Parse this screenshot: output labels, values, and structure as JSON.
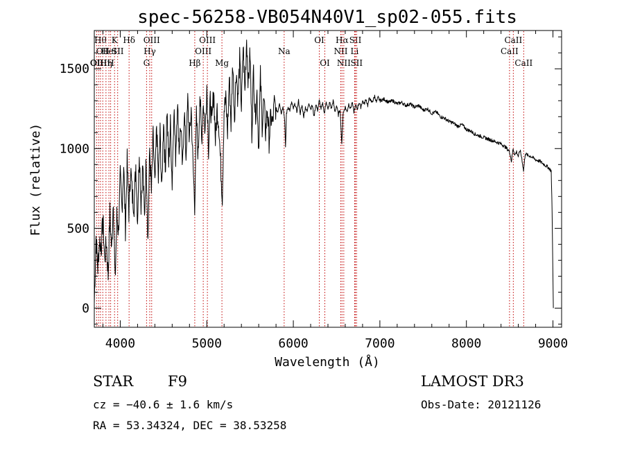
{
  "chart_data": {
    "type": "line",
    "title": "spec-56258-VB054N40V1_sp02-055.fits",
    "xlabel": "Wavelength (Å)",
    "ylabel": "Flux (relative)",
    "xlim": [
      3700,
      9100
    ],
    "ylim": [
      -120,
      1740
    ],
    "x_ticks": [
      4000,
      5000,
      6000,
      7000,
      8000,
      9000
    ],
    "x_tick_labels": [
      "4000",
      "5000",
      "6000",
      "7000",
      "8000",
      "9000"
    ],
    "y_ticks": [
      0,
      500,
      1000,
      1500
    ],
    "y_tick_labels": [
      "0",
      "500",
      "1000",
      "1500"
    ],
    "line_color": "#000000",
    "marker_color": "#c00000",
    "series": [
      {
        "name": "flux",
        "points": [
          [
            3700,
            30
          ],
          [
            3720,
            450
          ],
          [
            3740,
            250
          ],
          [
            3760,
            430
          ],
          [
            3780,
            380
          ],
          [
            3800,
            560
          ],
          [
            3820,
            300
          ],
          [
            3840,
            420
          ],
          [
            3860,
            200
          ],
          [
            3880,
            600
          ],
          [
            3900,
            350
          ],
          [
            3920,
            700
          ],
          [
            3940,
            150
          ],
          [
            3960,
            580
          ],
          [
            3980,
            480
          ],
          [
            4000,
            820
          ],
          [
            4020,
            620
          ],
          [
            4040,
            900
          ],
          [
            4060,
            500
          ],
          [
            4080,
            920
          ],
          [
            4100,
            600
          ],
          [
            4120,
            880
          ],
          [
            4140,
            700
          ],
          [
            4160,
            650
          ],
          [
            4180,
            900
          ],
          [
            4200,
            550
          ],
          [
            4220,
            1000
          ],
          [
            4240,
            650
          ],
          [
            4260,
            900
          ],
          [
            4280,
            560
          ],
          [
            4300,
            950
          ],
          [
            4320,
            420
          ],
          [
            4340,
            1000
          ],
          [
            4360,
            720
          ],
          [
            4380,
            1080
          ],
          [
            4400,
            750
          ],
          [
            4420,
            1150
          ],
          [
            4440,
            800
          ],
          [
            4460,
            1100
          ],
          [
            4480,
            720
          ],
          [
            4500,
            1200
          ],
          [
            4520,
            850
          ],
          [
            4540,
            1250
          ],
          [
            4560,
            900
          ],
          [
            4580,
            1150
          ],
          [
            4600,
            780
          ],
          [
            4620,
            1270
          ],
          [
            4640,
            950
          ],
          [
            4660,
            1300
          ],
          [
            4680,
            1000
          ],
          [
            4700,
            1150
          ],
          [
            4720,
            860
          ],
          [
            4740,
            1250
          ],
          [
            4760,
            950
          ],
          [
            4780,
            1300
          ],
          [
            4800,
            1050
          ],
          [
            4820,
            1250
          ],
          [
            4840,
            900
          ],
          [
            4860,
            650
          ],
          [
            4880,
            1200
          ],
          [
            4900,
            950
          ],
          [
            4920,
            1350
          ],
          [
            4940,
            1050
          ],
          [
            4960,
            1300
          ],
          [
            4980,
            1100
          ],
          [
            5000,
            1400
          ],
          [
            5020,
            1000
          ],
          [
            5040,
            1300
          ],
          [
            5060,
            1150
          ],
          [
            5080,
            1380
          ],
          [
            5100,
            1050
          ],
          [
            5120,
            1250
          ],
          [
            5140,
            1150
          ],
          [
            5160,
            900
          ],
          [
            5180,
            700
          ],
          [
            5200,
            1250
          ],
          [
            5220,
            1300
          ],
          [
            5240,
            1100
          ],
          [
            5260,
            1450
          ],
          [
            5280,
            1150
          ],
          [
            5300,
            1550
          ],
          [
            5320,
            1200
          ],
          [
            5340,
            1500
          ],
          [
            5360,
            1300
          ],
          [
            5380,
            1560
          ],
          [
            5400,
            1250
          ],
          [
            5420,
            1650
          ],
          [
            5440,
            1350
          ],
          [
            5460,
            1700
          ],
          [
            5480,
            1400
          ],
          [
            5500,
            1600
          ],
          [
            5520,
            1100
          ],
          [
            5540,
            1500
          ],
          [
            5560,
            1200
          ],
          [
            5580,
            1350
          ],
          [
            5600,
            1000
          ],
          [
            5620,
            1450
          ],
          [
            5640,
            1150
          ],
          [
            5660,
            1300
          ],
          [
            5680,
            1100
          ],
          [
            5700,
            1250
          ],
          [
            5720,
            1050
          ],
          [
            5740,
            1200
          ],
          [
            5760,
            1150
          ],
          [
            5780,
            1280
          ],
          [
            5800,
            1250
          ],
          [
            5820,
            1230
          ],
          [
            5840,
            1290
          ],
          [
            5860,
            1220
          ],
          [
            5880,
            1270
          ],
          [
            5900,
            1180
          ],
          [
            5910,
            1000
          ],
          [
            5920,
            1220
          ],
          [
            5940,
            1260
          ],
          [
            5960,
            1240
          ],
          [
            5980,
            1290
          ],
          [
            6000,
            1250
          ],
          [
            6020,
            1280
          ],
          [
            6040,
            1230
          ],
          [
            6060,
            1300
          ],
          [
            6080,
            1220
          ],
          [
            6100,
            1270
          ],
          [
            6120,
            1200
          ],
          [
            6140,
            1260
          ],
          [
            6160,
            1230
          ],
          [
            6180,
            1290
          ],
          [
            6200,
            1250
          ],
          [
            6220,
            1270
          ],
          [
            6240,
            1200
          ],
          [
            6260,
            1280
          ],
          [
            6280,
            1240
          ],
          [
            6300,
            1300
          ],
          [
            6320,
            1250
          ],
          [
            6340,
            1280
          ],
          [
            6360,
            1220
          ],
          [
            6380,
            1300
          ],
          [
            6400,
            1240
          ],
          [
            6420,
            1290
          ],
          [
            6440,
            1250
          ],
          [
            6460,
            1300
          ],
          [
            6480,
            1230
          ],
          [
            6500,
            1270
          ],
          [
            6520,
            1210
          ],
          [
            6540,
            1250
          ],
          [
            6560,
            1020
          ],
          [
            6575,
            1220
          ],
          [
            6600,
            1260
          ],
          [
            6620,
            1230
          ],
          [
            6640,
            1280
          ],
          [
            6660,
            1250
          ],
          [
            6680,
            1290
          ],
          [
            6700,
            1230
          ],
          [
            6720,
            1270
          ],
          [
            6740,
            1250
          ],
          [
            6760,
            1290
          ],
          [
            6780,
            1260
          ],
          [
            6800,
            1300
          ],
          [
            6820,
            1280
          ],
          [
            6840,
            1310
          ],
          [
            6860,
            1270
          ],
          [
            6880,
            1320
          ],
          [
            6900,
            1290
          ],
          [
            6920,
            1300
          ],
          [
            6940,
            1330
          ],
          [
            6960,
            1290
          ],
          [
            6980,
            1320
          ],
          [
            7000,
            1300
          ],
          [
            7050,
            1310
          ],
          [
            7100,
            1290
          ],
          [
            7150,
            1300
          ],
          [
            7200,
            1280
          ],
          [
            7250,
            1290
          ],
          [
            7300,
            1270
          ],
          [
            7350,
            1280
          ],
          [
            7400,
            1260
          ],
          [
            7450,
            1270
          ],
          [
            7500,
            1240
          ],
          [
            7550,
            1250
          ],
          [
            7600,
            1220
          ],
          [
            7650,
            1230
          ],
          [
            7700,
            1200
          ],
          [
            7750,
            1190
          ],
          [
            7800,
            1170
          ],
          [
            7850,
            1160
          ],
          [
            7900,
            1140
          ],
          [
            7950,
            1150
          ],
          [
            8000,
            1120
          ],
          [
            8050,
            1110
          ],
          [
            8100,
            1090
          ],
          [
            8150,
            1080
          ],
          [
            8200,
            1070
          ],
          [
            8250,
            1060
          ],
          [
            8300,
            1050
          ],
          [
            8350,
            1040
          ],
          [
            8400,
            1030
          ],
          [
            8450,
            1010
          ],
          [
            8500,
            980
          ],
          [
            8520,
            920
          ],
          [
            8540,
            1000
          ],
          [
            8560,
            960
          ],
          [
            8580,
            980
          ],
          [
            8600,
            950
          ],
          [
            8620,
            990
          ],
          [
            8640,
            940
          ],
          [
            8660,
            860
          ],
          [
            8680,
            970
          ],
          [
            8700,
            960
          ],
          [
            8750,
            950
          ],
          [
            8800,
            930
          ],
          [
            8850,
            920
          ],
          [
            8900,
            900
          ],
          [
            8950,
            880
          ],
          [
            8980,
            860
          ],
          [
            8990,
            600
          ],
          [
            9000,
            200
          ],
          [
            9005,
            0
          ]
        ]
      }
    ],
    "line_markers": [
      {
        "wavelength": 3727,
        "label": "OII",
        "row": 3
      },
      {
        "wavelength": 3750,
        "label": "OIII",
        "row": 3
      },
      {
        "wavelength": 3771,
        "label": "Hθ",
        "row": 1
      },
      {
        "wavelength": 3798,
        "label": "OII",
        "row": 2
      },
      {
        "wavelength": 3835,
        "label": "Hη",
        "row": 3
      },
      {
        "wavelength": 3869,
        "label": "HeI",
        "row": 2
      },
      {
        "wavelength": 3889,
        "label": "H",
        "row": 3
      },
      {
        "wavelength": 3934,
        "label": "K",
        "row": 1
      },
      {
        "wavelength": 3970,
        "label": "SII",
        "row": 2
      },
      {
        "wavelength": 4102,
        "label": "Hδ",
        "row": 1
      },
      {
        "wavelength": 4304,
        "label": "G",
        "row": 3
      },
      {
        "wavelength": 4341,
        "label": "Hγ",
        "row": 2
      },
      {
        "wavelength": 4363,
        "label": "OIII",
        "row": 1
      },
      {
        "wavelength": 4861,
        "label": "Hβ",
        "row": 3
      },
      {
        "wavelength": 4959,
        "label": "OIII",
        "row": 2
      },
      {
        "wavelength": 5007,
        "label": "OIII",
        "row": 1
      },
      {
        "wavelength": 5175,
        "label": "Mg",
        "row": 3
      },
      {
        "wavelength": 5894,
        "label": "Na",
        "row": 2
      },
      {
        "wavelength": 6300,
        "label": "OI",
        "row": 1
      },
      {
        "wavelength": 6364,
        "label": "OI",
        "row": 3
      },
      {
        "wavelength": 6548,
        "label": "NII",
        "row": 2
      },
      {
        "wavelength": 6563,
        "label": "Hα",
        "row": 1
      },
      {
        "wavelength": 6583,
        "label": "NII",
        "row": 3
      },
      {
        "wavelength": 6708,
        "label": "Li",
        "row": 2
      },
      {
        "wavelength": 6717,
        "label": "SII",
        "row": 1
      },
      {
        "wavelength": 6731,
        "label": "SII",
        "row": 3
      },
      {
        "wavelength": 8498,
        "label": "CaII",
        "row": 2
      },
      {
        "wavelength": 8542,
        "label": "CaII",
        "row": 1
      },
      {
        "wavelength": 8662,
        "label": "CaII",
        "row": 3
      }
    ]
  },
  "info": {
    "object_class": "STAR",
    "subclass": "F9",
    "survey": "LAMOST DR3",
    "cz": "cz = −40.6 ± 1.6 km/s",
    "obs_date": "Obs-Date: 20121126",
    "coords": "RA =  53.34324, DEC =  38.53258"
  }
}
